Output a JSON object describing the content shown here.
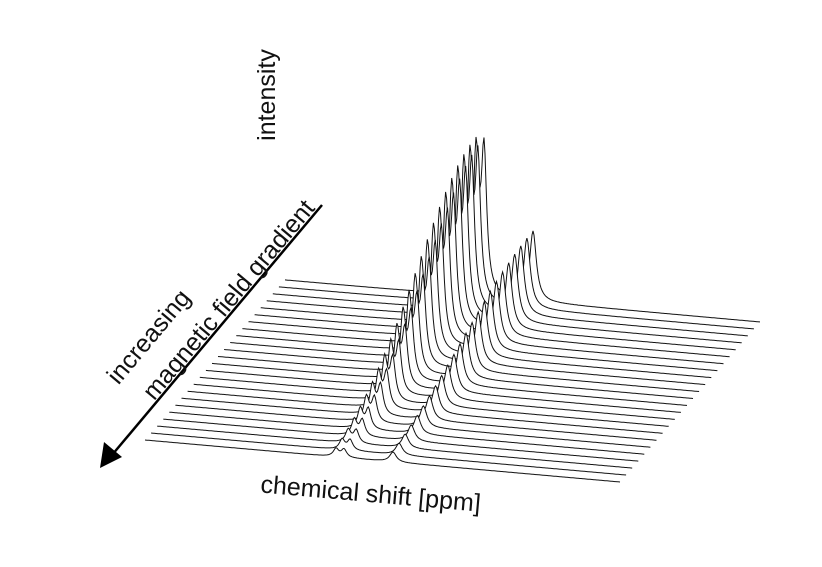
{
  "axis_labels": {
    "intensity": "intensity",
    "gradient_line1": "increasing",
    "gradient_line2": "magnetic field gradient",
    "chemical_shift": "chemical shift [ppm]"
  }
}
